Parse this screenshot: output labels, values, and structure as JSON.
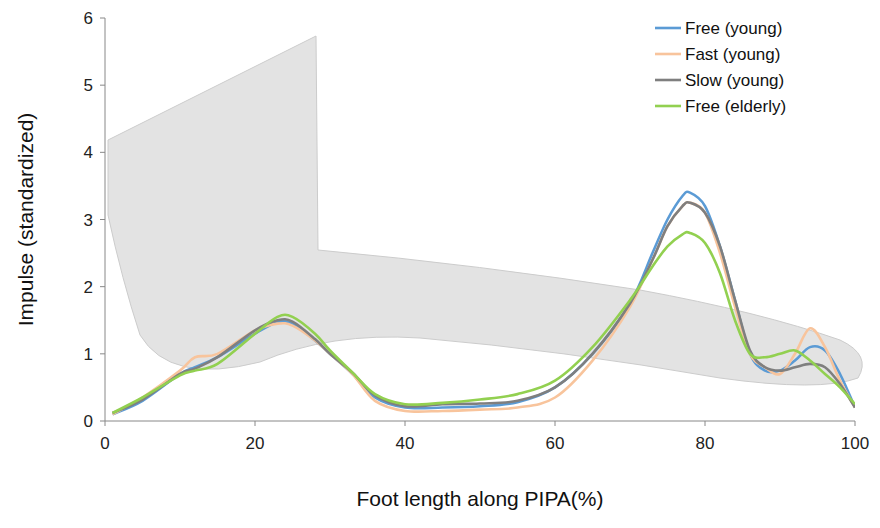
{
  "chart_data": {
    "type": "line",
    "x_label": "Foot length along PIPA(%)",
    "y_label": "Impulse (standardized)",
    "x": [
      1,
      5,
      10,
      12,
      15,
      20,
      23,
      25,
      28,
      30,
      33,
      36,
      40,
      45,
      50,
      55,
      60,
      65,
      70,
      73,
      75,
      77,
      78,
      80,
      82,
      84,
      86,
      88,
      90,
      92,
      94,
      96,
      98,
      100
    ],
    "series": [
      {
        "name": "Free (young)",
        "color": "#5b9bd5",
        "values": [
          0.1,
          0.3,
          0.7,
          0.8,
          0.95,
          1.3,
          1.47,
          1.45,
          1.2,
          1.0,
          0.7,
          0.35,
          0.2,
          0.2,
          0.22,
          0.28,
          0.5,
          1.0,
          1.75,
          2.5,
          3.0,
          3.35,
          3.4,
          3.2,
          2.6,
          1.8,
          1.0,
          0.75,
          0.75,
          0.9,
          1.1,
          1.05,
          0.7,
          0.2
        ]
      },
      {
        "name": "Fast (young)",
        "color": "#f8c49c",
        "values": [
          0.1,
          0.35,
          0.75,
          0.95,
          1.0,
          1.35,
          1.45,
          1.42,
          1.2,
          1.0,
          0.7,
          0.3,
          0.15,
          0.15,
          0.17,
          0.2,
          0.35,
          0.9,
          1.7,
          2.4,
          2.9,
          3.2,
          3.25,
          3.1,
          2.5,
          1.7,
          1.0,
          0.8,
          0.7,
          1.0,
          1.38,
          1.1,
          0.6,
          0.2
        ]
      },
      {
        "name": "Slow (young)",
        "color": "#7f7f7f",
        "values": [
          0.12,
          0.32,
          0.7,
          0.78,
          0.95,
          1.35,
          1.5,
          1.48,
          1.22,
          1.0,
          0.72,
          0.38,
          0.22,
          0.25,
          0.26,
          0.3,
          0.5,
          1.0,
          1.75,
          2.4,
          2.9,
          3.2,
          3.25,
          3.1,
          2.6,
          1.8,
          1.05,
          0.8,
          0.75,
          0.8,
          0.85,
          0.8,
          0.55,
          0.2
        ]
      },
      {
        "name": "Free (elderly)",
        "color": "#92d050",
        "values": [
          0.12,
          0.35,
          0.68,
          0.75,
          0.85,
          1.3,
          1.55,
          1.55,
          1.3,
          1.05,
          0.72,
          0.4,
          0.25,
          0.27,
          0.32,
          0.4,
          0.6,
          1.1,
          1.8,
          2.3,
          2.6,
          2.78,
          2.8,
          2.65,
          2.2,
          1.5,
          1.0,
          0.95,
          1.0,
          1.05,
          0.9,
          0.7,
          0.5,
          0.25
        ]
      }
    ],
    "xlim": [
      0,
      100
    ],
    "xticks": [
      0,
      20,
      40,
      60,
      80,
      100
    ],
    "ylim": [
      0,
      6
    ],
    "yticks": [
      0,
      1,
      2,
      3,
      4,
      5,
      6
    ],
    "legend": "upper right",
    "grid": false
  }
}
